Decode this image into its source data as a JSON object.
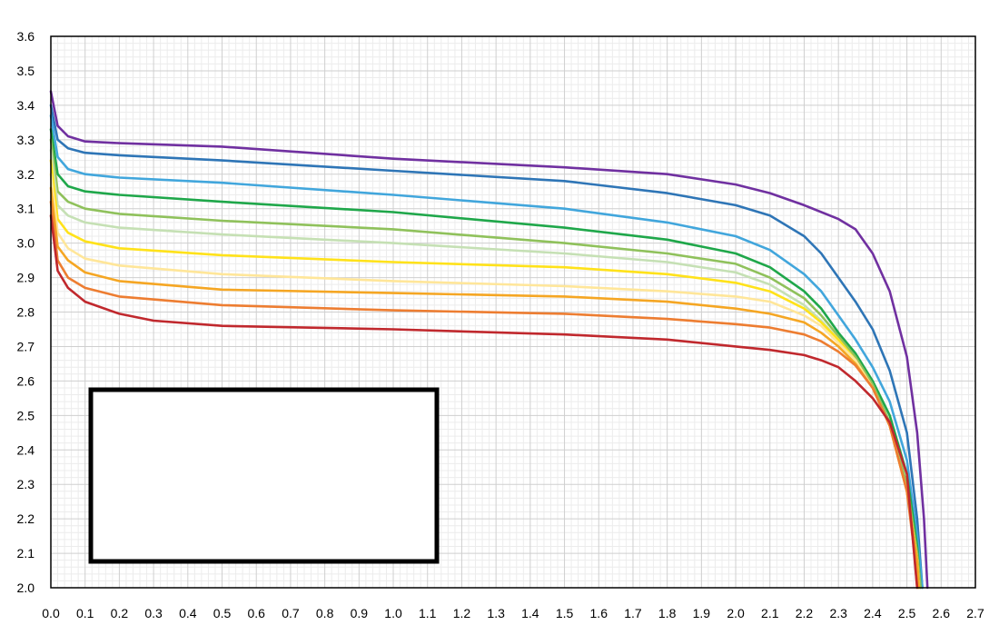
{
  "chart_data": {
    "type": "line",
    "title": "",
    "xlabel": "",
    "ylabel": "",
    "xlim": [
      0.0,
      2.7
    ],
    "ylim": [
      2.0,
      3.6
    ],
    "grid": true,
    "legend": "box at lower-left, empty",
    "x_ticks": [
      "0.0",
      "0.1",
      "0.2",
      "0.3",
      "0.4",
      "0.5",
      "0.6",
      "0.7",
      "0.8",
      "0.9",
      "1.0",
      "1.1",
      "1.2",
      "1.3",
      "1.4",
      "1.5",
      "1.6",
      "1.7",
      "1.8",
      "1.9",
      "2.0",
      "2.1",
      "2.2",
      "2.3",
      "2.4",
      "2.5",
      "2.6",
      "2.7"
    ],
    "y_ticks": [
      "3.6",
      "3.5",
      "3.4",
      "3.3",
      "3.2",
      "3.1",
      "3.0",
      "2.9",
      "2.8",
      "2.7",
      "2.6",
      "2.5",
      "2.4",
      "2.3",
      "2.2",
      "2.1",
      "2.0"
    ],
    "series": [
      {
        "color": "#7030a0",
        "x": [
          0.0,
          0.02,
          0.05,
          0.1,
          0.2,
          0.5,
          1.0,
          1.5,
          1.8,
          2.0,
          2.1,
          2.2,
          2.3,
          2.35,
          2.4,
          2.45,
          2.5,
          2.53,
          2.55,
          2.56
        ],
        "y": [
          3.44,
          3.34,
          3.31,
          3.295,
          3.29,
          3.28,
          3.245,
          3.22,
          3.2,
          3.17,
          3.145,
          3.11,
          3.07,
          3.04,
          2.97,
          2.86,
          2.67,
          2.45,
          2.2,
          2.0
        ]
      },
      {
        "color": "#2e75b6",
        "x": [
          0.0,
          0.02,
          0.05,
          0.1,
          0.2,
          0.5,
          1.0,
          1.5,
          1.8,
          2.0,
          2.1,
          2.2,
          2.25,
          2.3,
          2.35,
          2.4,
          2.45,
          2.5,
          2.53,
          2.545
        ],
        "y": [
          3.4,
          3.3,
          3.275,
          3.262,
          3.255,
          3.24,
          3.21,
          3.18,
          3.145,
          3.11,
          3.08,
          3.02,
          2.97,
          2.9,
          2.83,
          2.75,
          2.63,
          2.45,
          2.2,
          2.0
        ]
      },
      {
        "color": "#41a6dc",
        "x": [
          0.0,
          0.02,
          0.05,
          0.1,
          0.2,
          0.5,
          1.0,
          1.5,
          1.8,
          2.0,
          2.1,
          2.2,
          2.25,
          2.3,
          2.35,
          2.4,
          2.45,
          2.5,
          2.53,
          2.545
        ],
        "y": [
          3.37,
          3.25,
          3.215,
          3.2,
          3.19,
          3.175,
          3.14,
          3.1,
          3.06,
          3.02,
          2.98,
          2.91,
          2.86,
          2.79,
          2.72,
          2.64,
          2.54,
          2.37,
          2.15,
          2.0
        ]
      },
      {
        "color": "#1fa74a",
        "x": [
          0.0,
          0.02,
          0.05,
          0.1,
          0.2,
          0.5,
          1.0,
          1.5,
          1.8,
          2.0,
          2.1,
          2.2,
          2.25,
          2.3,
          2.35,
          2.4,
          2.45,
          2.5,
          2.53,
          2.54
        ],
        "y": [
          3.33,
          3.2,
          3.165,
          3.15,
          3.14,
          3.12,
          3.09,
          3.045,
          3.01,
          2.97,
          2.93,
          2.86,
          2.81,
          2.74,
          2.68,
          2.6,
          2.5,
          2.33,
          2.12,
          2.0
        ]
      },
      {
        "color": "#8fc15b",
        "x": [
          0.0,
          0.02,
          0.05,
          0.1,
          0.2,
          0.5,
          1.0,
          1.5,
          1.8,
          2.0,
          2.1,
          2.2,
          2.25,
          2.3,
          2.35,
          2.4,
          2.45,
          2.5,
          2.53,
          2.54
        ],
        "y": [
          3.3,
          3.15,
          3.12,
          3.1,
          3.085,
          3.065,
          3.04,
          3.0,
          2.97,
          2.94,
          2.9,
          2.84,
          2.79,
          2.73,
          2.67,
          2.59,
          2.48,
          2.3,
          2.1,
          2.0
        ]
      },
      {
        "color": "#c5e0b4",
        "x": [
          0.0,
          0.02,
          0.05,
          0.1,
          0.2,
          0.5,
          1.0,
          1.5,
          1.8,
          2.0,
          2.1,
          2.2,
          2.25,
          2.3,
          2.35,
          2.4,
          2.45,
          2.5,
          2.53,
          2.535
        ],
        "y": [
          3.27,
          3.11,
          3.08,
          3.06,
          3.045,
          3.025,
          3.0,
          2.97,
          2.945,
          2.915,
          2.88,
          2.82,
          2.775,
          2.72,
          2.66,
          2.58,
          2.47,
          2.28,
          2.08,
          2.0
        ]
      },
      {
        "color": "#ffe21a",
        "x": [
          0.0,
          0.02,
          0.05,
          0.1,
          0.2,
          0.5,
          1.0,
          1.5,
          1.8,
          2.0,
          2.1,
          2.2,
          2.25,
          2.3,
          2.35,
          2.4,
          2.45,
          2.5,
          2.53,
          2.535
        ],
        "y": [
          3.24,
          3.07,
          3.03,
          3.005,
          2.985,
          2.965,
          2.945,
          2.93,
          2.91,
          2.885,
          2.86,
          2.81,
          2.77,
          2.72,
          2.66,
          2.58,
          2.47,
          2.28,
          2.08,
          2.0
        ]
      },
      {
        "color": "#ffe699",
        "x": [
          0.0,
          0.02,
          0.05,
          0.1,
          0.2,
          0.5,
          1.0,
          1.5,
          1.8,
          2.0,
          2.1,
          2.2,
          2.25,
          2.3,
          2.35,
          2.4,
          2.45,
          2.5,
          2.53,
          2.535
        ],
        "y": [
          3.2,
          3.03,
          2.985,
          2.955,
          2.935,
          2.91,
          2.89,
          2.875,
          2.86,
          2.845,
          2.83,
          2.79,
          2.76,
          2.71,
          2.66,
          2.58,
          2.47,
          2.28,
          2.08,
          2.0
        ]
      },
      {
        "color": "#f5a623",
        "x": [
          0.0,
          0.02,
          0.05,
          0.1,
          0.2,
          0.5,
          1.0,
          1.5,
          1.8,
          2.0,
          2.1,
          2.2,
          2.25,
          2.3,
          2.35,
          2.4,
          2.45,
          2.5,
          2.53,
          2.535
        ],
        "y": [
          3.16,
          2.99,
          2.95,
          2.915,
          2.89,
          2.865,
          2.855,
          2.845,
          2.83,
          2.81,
          2.795,
          2.77,
          2.74,
          2.7,
          2.65,
          2.58,
          2.47,
          2.28,
          2.08,
          2.0
        ]
      },
      {
        "color": "#ed7d31",
        "x": [
          0.0,
          0.02,
          0.05,
          0.1,
          0.2,
          0.5,
          1.0,
          1.5,
          1.8,
          2.0,
          2.1,
          2.2,
          2.25,
          2.3,
          2.35,
          2.4,
          2.45,
          2.5,
          2.52,
          2.53
        ],
        "y": [
          3.12,
          2.95,
          2.9,
          2.87,
          2.845,
          2.82,
          2.805,
          2.795,
          2.78,
          2.765,
          2.755,
          2.735,
          2.715,
          2.685,
          2.645,
          2.58,
          2.47,
          2.28,
          2.12,
          2.0
        ]
      },
      {
        "color": "#c0282d",
        "x": [
          0.0,
          0.02,
          0.05,
          0.1,
          0.2,
          0.3,
          0.5,
          1.0,
          1.5,
          1.8,
          2.0,
          2.1,
          2.2,
          2.25,
          2.3,
          2.35,
          2.4,
          2.45,
          2.5,
          2.53
        ],
        "y": [
          3.08,
          2.92,
          2.87,
          2.83,
          2.795,
          2.775,
          2.76,
          2.75,
          2.735,
          2.72,
          2.7,
          2.69,
          2.675,
          2.66,
          2.64,
          2.6,
          2.55,
          2.48,
          2.33,
          2.0
        ]
      }
    ]
  }
}
